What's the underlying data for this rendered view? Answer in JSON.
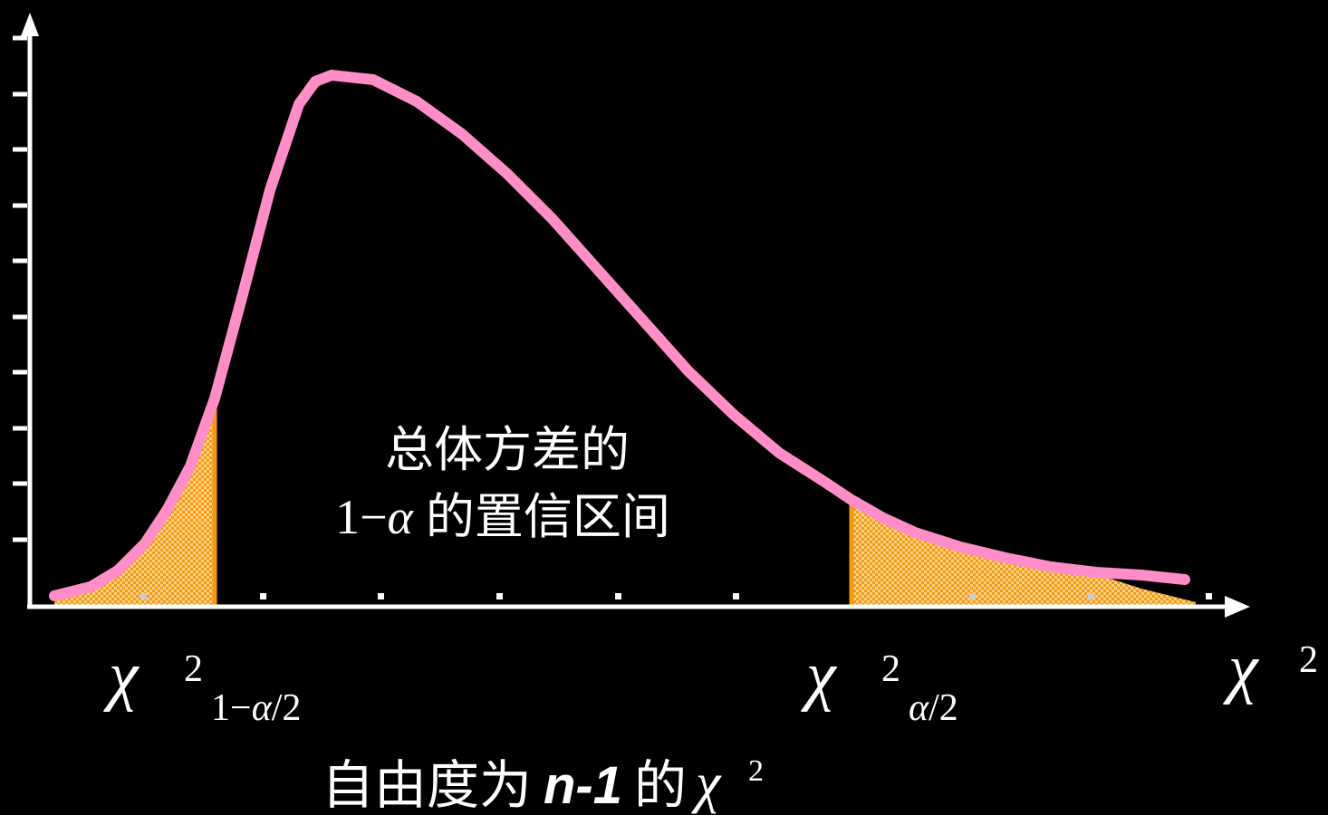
{
  "colors": {
    "background": "#000000",
    "curve": "#ff8ec8",
    "tail_fill": "#f59a0a",
    "critical_line": "#f59a0a",
    "axis": "#ffffff"
  },
  "interval_label": {
    "line1": "总体方差的",
    "line2_prefix": "1−",
    "line2_alpha": "α",
    "line2_suffix": "的置信区间"
  },
  "labels": {
    "chi_symbol": "χ",
    "lower_critical": {
      "sup": "2",
      "sub_prefix": "1−",
      "sub_alpha": "α",
      "sub_suffix": "/2"
    },
    "upper_critical": {
      "sup": "2",
      "sub_alpha": "α",
      "sub_suffix": "/2"
    },
    "axis_name": {
      "sup": "2"
    }
  },
  "caption": {
    "prefix": "自由度为",
    "bold": "n-1",
    "suffix": "的",
    "sup": "2"
  },
  "icons": {
    "chi": "chi-glyph-icon",
    "x_arrow": "arrow-right-icon",
    "y_arrow": "arrow-up-icon"
  }
}
